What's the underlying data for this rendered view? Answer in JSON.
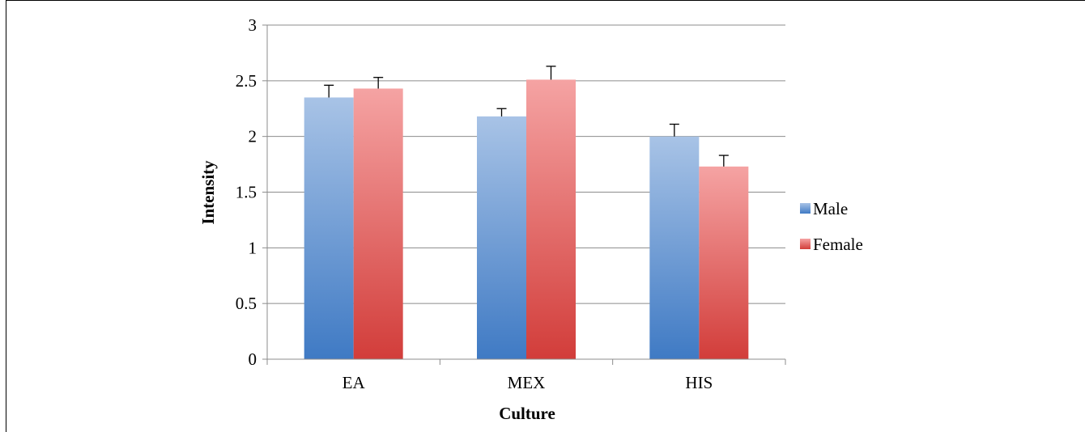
{
  "chart_data": {
    "type": "bar",
    "title": "",
    "xlabel": "Culture",
    "ylabel": "Intensity",
    "categories": [
      "EA",
      "MEX",
      "HIS"
    ],
    "ylim": [
      0,
      3
    ],
    "yticks": [
      "0",
      "0.5",
      "1",
      "1.5",
      "2",
      "2.5",
      "3"
    ],
    "grid": true,
    "legend_position": "right",
    "series": [
      {
        "name": "Male",
        "values": [
          2.35,
          2.18,
          2.0
        ],
        "errors": [
          0.11,
          0.07,
          0.11
        ],
        "color_top": "#a8c3e6",
        "color_bottom": "#3f7ac4"
      },
      {
        "name": "Female",
        "values": [
          2.43,
          2.51,
          1.73
        ],
        "errors": [
          0.1,
          0.12,
          0.1
        ],
        "color_top": "#f5a3a3",
        "color_bottom": "#d23d3a"
      }
    ]
  }
}
